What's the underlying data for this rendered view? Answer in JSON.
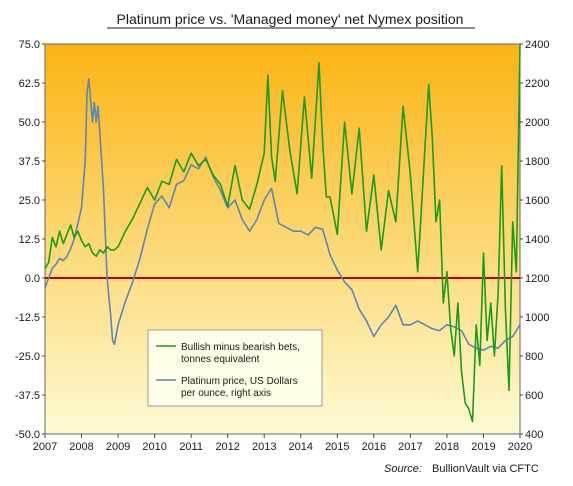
{
  "chart_data": {
    "type": "line",
    "title": "Platinum price vs. 'Managed money' net Nymex position",
    "source_label": "Source:",
    "source_text": "BullionVault via CFTC",
    "xlabel": "",
    "ylabel_left": "",
    "ylabel_right": "",
    "x_ticks": [
      "2007",
      "2008",
      "2009",
      "2010",
      "2011",
      "2012",
      "2013",
      "2014",
      "2015",
      "2016",
      "2017",
      "2018",
      "2019",
      "2020"
    ],
    "xlim": [
      2007,
      2020
    ],
    "left_ticks": [
      "75.0",
      "62.5",
      "50.0",
      "37.5",
      "25.0",
      "12.5",
      "0.0",
      "-12.5",
      "-25.0",
      "-37.5",
      "-50.0"
    ],
    "ylim_left": [
      -50,
      75
    ],
    "right_ticks": [
      "2400",
      "2200",
      "2000",
      "1800",
      "1600",
      "1400",
      "1200",
      "1000",
      "800",
      "600",
      "400"
    ],
    "ylim_right": [
      400,
      2400
    ],
    "zero_line": 0,
    "grid": false,
    "legend_position": "bottom-left",
    "colors": {
      "net_position": "#1a9c1a",
      "platinum_price": "#5b87b0",
      "zero_line": "#c00000",
      "background_top": "#fbb412",
      "background_bottom": "#fdfad3"
    },
    "series": [
      {
        "name": "Bullish minus bearish bets, tonnes equivalent",
        "legend_lines": [
          "Bullish minus bearish bets,",
          "tonnes equivalent"
        ],
        "axis": "left",
        "x": [
          2007.0,
          2007.1,
          2007.2,
          2007.3,
          2007.4,
          2007.5,
          2007.6,
          2007.7,
          2007.8,
          2007.9,
          2008.0,
          2008.1,
          2008.2,
          2008.3,
          2008.4,
          2008.5,
          2008.6,
          2008.7,
          2008.8,
          2008.9,
          2009.0,
          2009.2,
          2009.4,
          2009.6,
          2009.8,
          2010.0,
          2010.2,
          2010.4,
          2010.6,
          2010.8,
          2011.0,
          2011.2,
          2011.4,
          2011.6,
          2011.8,
          2012.0,
          2012.2,
          2012.4,
          2012.6,
          2012.8,
          2013.0,
          2013.1,
          2013.2,
          2013.3,
          2013.5,
          2013.7,
          2013.9,
          2014.1,
          2014.3,
          2014.5,
          2014.6,
          2014.7,
          2014.8,
          2015.0,
          2015.2,
          2015.4,
          2015.6,
          2015.8,
          2016.0,
          2016.2,
          2016.4,
          2016.6,
          2016.8,
          2017.0,
          2017.2,
          2017.4,
          2017.5,
          2017.6,
          2017.7,
          2017.8,
          2017.9,
          2018.0,
          2018.1,
          2018.2,
          2018.3,
          2018.4,
          2018.5,
          2018.6,
          2018.7,
          2018.8,
          2018.9,
          2019.0,
          2019.1,
          2019.2,
          2019.3,
          2019.4,
          2019.5,
          2019.6,
          2019.7,
          2019.8,
          2019.9,
          2020.0
        ],
        "y": [
          3,
          5,
          13,
          10,
          15,
          11,
          14,
          17,
          13,
          15,
          12,
          10,
          11,
          8,
          7,
          9,
          8,
          10,
          9,
          9,
          10,
          15,
          19,
          24,
          29,
          25,
          31,
          30,
          38,
          34,
          40,
          36,
          38,
          33,
          30,
          23,
          36,
          25,
          22,
          30,
          40,
          65,
          39,
          31,
          60,
          41,
          27,
          58,
          32,
          69,
          43,
          26,
          26,
          14,
          50,
          27,
          48,
          15,
          33,
          9,
          28,
          18,
          55,
          33,
          2,
          42,
          62,
          45,
          18,
          25,
          -8,
          2,
          -16,
          -25,
          -8,
          -30,
          -40,
          -42,
          -46,
          -15,
          -28,
          8,
          -20,
          -8,
          -25,
          -5,
          36,
          -10,
          -36,
          18,
          2,
          75
        ]
      },
      {
        "name": "Platinum price, US Dollars per ounce, right axis",
        "legend_lines": [
          "Platinum price, US Dollars",
          "per ounce, right axis"
        ],
        "axis": "right",
        "x": [
          2007.0,
          2007.1,
          2007.2,
          2007.3,
          2007.4,
          2007.5,
          2007.6,
          2007.7,
          2007.8,
          2007.9,
          2008.0,
          2008.1,
          2008.15,
          2008.2,
          2008.3,
          2008.35,
          2008.4,
          2008.45,
          2008.5,
          2008.6,
          2008.7,
          2008.8,
          2008.85,
          2008.9,
          2009.0,
          2009.2,
          2009.4,
          2009.6,
          2009.8,
          2010.0,
          2010.2,
          2010.4,
          2010.6,
          2010.8,
          2011.0,
          2011.2,
          2011.4,
          2011.6,
          2011.8,
          2012.0,
          2012.2,
          2012.4,
          2012.6,
          2012.8,
          2013.0,
          2013.2,
          2013.4,
          2013.6,
          2013.8,
          2014.0,
          2014.2,
          2014.4,
          2014.6,
          2014.8,
          2015.0,
          2015.2,
          2015.4,
          2015.6,
          2015.8,
          2016.0,
          2016.2,
          2016.4,
          2016.6,
          2016.8,
          2017.0,
          2017.2,
          2017.4,
          2017.6,
          2017.8,
          2018.0,
          2018.2,
          2018.4,
          2018.6,
          2018.8,
          2019.0,
          2019.2,
          2019.4,
          2019.6,
          2019.8,
          2020.0
        ],
        "y": [
          1150,
          1200,
          1250,
          1270,
          1300,
          1290,
          1310,
          1350,
          1400,
          1480,
          1560,
          1800,
          2150,
          2220,
          2000,
          2100,
          2000,
          2080,
          1950,
          1650,
          1200,
          1000,
          880,
          860,
          960,
          1080,
          1180,
          1300,
          1450,
          1580,
          1620,
          1560,
          1680,
          1700,
          1780,
          1760,
          1820,
          1720,
          1650,
          1560,
          1600,
          1500,
          1440,
          1500,
          1600,
          1660,
          1480,
          1460,
          1440,
          1440,
          1420,
          1460,
          1450,
          1320,
          1240,
          1180,
          1140,
          1040,
          980,
          900,
          960,
          1000,
          1060,
          960,
          960,
          980,
          960,
          940,
          930,
          960,
          950,
          930,
          860,
          840,
          830,
          850,
          840,
          880,
          900,
          960
        ]
      }
    ]
  }
}
